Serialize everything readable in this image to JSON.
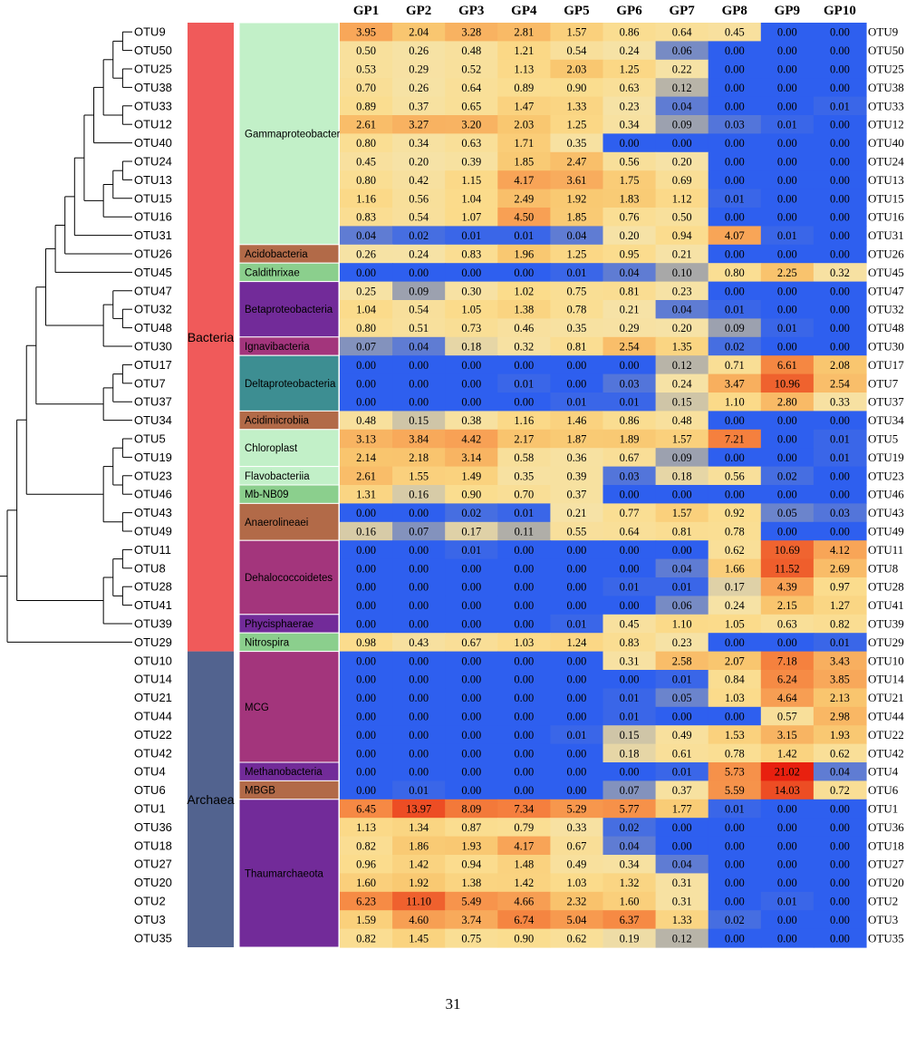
{
  "chart_data": {
    "type": "heatmap",
    "title": "",
    "columns": [
      "GP1",
      "GP2",
      "GP3",
      "GP4",
      "GP5",
      "GP6",
      "GP7",
      "GP8",
      "GP9",
      "GP10"
    ],
    "rows": [
      "OTU9",
      "OTU50",
      "OTU25",
      "OTU38",
      "OTU33",
      "OTU12",
      "OTU40",
      "OTU24",
      "OTU13",
      "OTU15",
      "OTU16",
      "OTU31",
      "OTU26",
      "OTU45",
      "OTU47",
      "OTU32",
      "OTU48",
      "OTU30",
      "OTU17",
      "OTU7",
      "OTU37",
      "OTU34",
      "OTU5",
      "OTU19",
      "OTU23",
      "OTU46",
      "OTU43",
      "OTU49",
      "OTU11",
      "OTU8",
      "OTU28",
      "OTU41",
      "OTU39",
      "OTU29",
      "OTU10",
      "OTU14",
      "OTU21",
      "OTU44",
      "OTU22",
      "OTU42",
      "OTU4",
      "OTU6",
      "OTU1",
      "OTU36",
      "OTU18",
      "OTU27",
      "OTU20",
      "OTU2",
      "OTU3",
      "OTU35"
    ],
    "values": [
      [
        "3.95",
        "2.04",
        "3.28",
        "2.81",
        "1.57",
        "0.86",
        "0.64",
        "0.45",
        "0.00",
        "0.00"
      ],
      [
        "0.50",
        "0.26",
        "0.48",
        "1.21",
        "0.54",
        "0.24",
        "0.06",
        "0.00",
        "0.00",
        "0.00"
      ],
      [
        "0.53",
        "0.29",
        "0.52",
        "1.13",
        "2.03",
        "1.25",
        "0.22",
        "0.00",
        "0.00",
        "0.00"
      ],
      [
        "0.70",
        "0.26",
        "0.64",
        "0.89",
        "0.90",
        "0.63",
        "0.12",
        "0.00",
        "0.00",
        "0.00"
      ],
      [
        "0.89",
        "0.37",
        "0.65",
        "1.47",
        "1.33",
        "0.23",
        "0.04",
        "0.00",
        "0.00",
        "0.01"
      ],
      [
        "2.61",
        "3.27",
        "3.20",
        "2.03",
        "1.25",
        "0.34",
        "0.09",
        "0.03",
        "0.01",
        "0.00"
      ],
      [
        "0.80",
        "0.34",
        "0.63",
        "1.71",
        "0.35",
        "0.00",
        "0.00",
        "0.00",
        "0.00",
        "0.00"
      ],
      [
        "0.45",
        "0.20",
        "0.39",
        "1.85",
        "2.47",
        "0.56",
        "0.20",
        "0.00",
        "0.00",
        "0.00"
      ],
      [
        "0.80",
        "0.42",
        "1.15",
        "4.17",
        "3.61",
        "1.75",
        "0.69",
        "0.00",
        "0.00",
        "0.00"
      ],
      [
        "1.16",
        "0.56",
        "1.04",
        "2.49",
        "1.92",
        "1.83",
        "1.12",
        "0.01",
        "0.00",
        "0.00"
      ],
      [
        "0.83",
        "0.54",
        "1.07",
        "4.50",
        "1.85",
        "0.76",
        "0.50",
        "0.00",
        "0.00",
        "0.00"
      ],
      [
        "0.04",
        "0.02",
        "0.01",
        "0.01",
        "0.04",
        "0.20",
        "0.94",
        "4.07",
        "0.01",
        "0.00"
      ],
      [
        "0.26",
        "0.24",
        "0.83",
        "1.96",
        "1.25",
        "0.95",
        "0.21",
        "0.00",
        "0.00",
        "0.00"
      ],
      [
        "0.00",
        "0.00",
        "0.00",
        "0.00",
        "0.01",
        "0.04",
        "0.10",
        "0.80",
        "2.25",
        "0.32"
      ],
      [
        "0.25",
        "0.09",
        "0.30",
        "1.02",
        "0.75",
        "0.81",
        "0.23",
        "0.00",
        "0.00",
        "0.00"
      ],
      [
        "1.04",
        "0.54",
        "1.05",
        "1.38",
        "0.78",
        "0.21",
        "0.04",
        "0.01",
        "0.00",
        "0.00"
      ],
      [
        "0.80",
        "0.51",
        "0.73",
        "0.46",
        "0.35",
        "0.29",
        "0.20",
        "0.09",
        "0.01",
        "0.00"
      ],
      [
        "0.07",
        "0.04",
        "0.18",
        "0.32",
        "0.81",
        "2.54",
        "1.35",
        "0.02",
        "0.00",
        "0.00"
      ],
      [
        "0.00",
        "0.00",
        "0.00",
        "0.00",
        "0.00",
        "0.00",
        "0.12",
        "0.71",
        "6.61",
        "2.08"
      ],
      [
        "0.00",
        "0.00",
        "0.00",
        "0.01",
        "0.00",
        "0.03",
        "0.24",
        "3.47",
        "10.96",
        "2.54"
      ],
      [
        "0.00",
        "0.00",
        "0.00",
        "0.00",
        "0.01",
        "0.01",
        "0.15",
        "1.10",
        "2.80",
        "0.33"
      ],
      [
        "0.48",
        "0.15",
        "0.38",
        "1.16",
        "1.46",
        "0.86",
        "0.48",
        "0.00",
        "0.00",
        "0.00"
      ],
      [
        "3.13",
        "3.84",
        "4.42",
        "2.17",
        "1.87",
        "1.89",
        "1.57",
        "7.21",
        "0.00",
        "0.01"
      ],
      [
        "2.14",
        "2.18",
        "3.14",
        "0.58",
        "0.36",
        "0.67",
        "0.09",
        "0.00",
        "0.00",
        "0.01"
      ],
      [
        "2.61",
        "1.55",
        "1.49",
        "0.35",
        "0.39",
        "0.03",
        "0.18",
        "0.56",
        "0.02",
        "0.00"
      ],
      [
        "1.31",
        "0.16",
        "0.90",
        "0.70",
        "0.37",
        "0.00",
        "0.00",
        "0.00",
        "0.00",
        "0.00"
      ],
      [
        "0.00",
        "0.00",
        "0.02",
        "0.01",
        "0.21",
        "0.77",
        "1.57",
        "0.92",
        "0.05",
        "0.03"
      ],
      [
        "0.16",
        "0.07",
        "0.17",
        "0.11",
        "0.55",
        "0.64",
        "0.81",
        "0.78",
        "0.00",
        "0.00"
      ],
      [
        "0.00",
        "0.00",
        "0.01",
        "0.00",
        "0.00",
        "0.00",
        "0.00",
        "0.62",
        "10.69",
        "4.12"
      ],
      [
        "0.00",
        "0.00",
        "0.00",
        "0.00",
        "0.00",
        "0.00",
        "0.04",
        "1.66",
        "11.52",
        "2.69"
      ],
      [
        "0.00",
        "0.00",
        "0.00",
        "0.00",
        "0.00",
        "0.01",
        "0.01",
        "0.17",
        "4.39",
        "0.97"
      ],
      [
        "0.00",
        "0.00",
        "0.00",
        "0.00",
        "0.00",
        "0.00",
        "0.06",
        "0.24",
        "2.15",
        "1.27"
      ],
      [
        "0.00",
        "0.00",
        "0.00",
        "0.00",
        "0.01",
        "0.45",
        "1.10",
        "1.05",
        "0.63",
        "0.82"
      ],
      [
        "0.98",
        "0.43",
        "0.67",
        "1.03",
        "1.24",
        "0.83",
        "0.23",
        "0.00",
        "0.00",
        "0.01"
      ],
      [
        "0.00",
        "0.00",
        "0.00",
        "0.00",
        "0.00",
        "0.31",
        "2.58",
        "2.07",
        "7.18",
        "3.43"
      ],
      [
        "0.00",
        "0.00",
        "0.00",
        "0.00",
        "0.00",
        "0.00",
        "0.01",
        "0.84",
        "6.24",
        "3.85"
      ],
      [
        "0.00",
        "0.00",
        "0.00",
        "0.00",
        "0.00",
        "0.01",
        "0.05",
        "1.03",
        "4.64",
        "2.13"
      ],
      [
        "0.00",
        "0.00",
        "0.00",
        "0.00",
        "0.00",
        "0.01",
        "0.00",
        "0.00",
        "0.57",
        "2.98"
      ],
      [
        "0.00",
        "0.00",
        "0.00",
        "0.00",
        "0.01",
        "0.15",
        "0.49",
        "1.53",
        "3.15",
        "1.93"
      ],
      [
        "0.00",
        "0.00",
        "0.00",
        "0.00",
        "0.00",
        "0.18",
        "0.61",
        "0.78",
        "1.42",
        "0.62"
      ],
      [
        "0.00",
        "0.00",
        "0.00",
        "0.00",
        "0.00",
        "0.00",
        "0.01",
        "5.73",
        "21.02",
        "0.04"
      ],
      [
        "0.00",
        "0.01",
        "0.00",
        "0.00",
        "0.00",
        "0.07",
        "0.37",
        "5.59",
        "14.03",
        "0.72"
      ],
      [
        "6.45",
        "13.97",
        "8.09",
        "7.34",
        "5.29",
        "5.77",
        "1.77",
        "0.01",
        "0.00",
        "0.00"
      ],
      [
        "1.13",
        "1.34",
        "0.87",
        "0.79",
        "0.33",
        "0.02",
        "0.00",
        "0.00",
        "0.00",
        "0.00"
      ],
      [
        "0.82",
        "1.86",
        "1.93",
        "4.17",
        "0.67",
        "0.04",
        "0.00",
        "0.00",
        "0.00",
        "0.00"
      ],
      [
        "0.96",
        "1.42",
        "0.94",
        "1.48",
        "0.49",
        "0.34",
        "0.04",
        "0.00",
        "0.00",
        "0.00"
      ],
      [
        "1.60",
        "1.92",
        "1.38",
        "1.42",
        "1.03",
        "1.32",
        "0.31",
        "0.00",
        "0.00",
        "0.00"
      ],
      [
        "6.23",
        "11.10",
        "5.49",
        "4.66",
        "2.32",
        "1.60",
        "0.31",
        "0.00",
        "0.01",
        "0.00"
      ],
      [
        "1.59",
        "4.60",
        "3.74",
        "6.74",
        "5.04",
        "6.37",
        "1.33",
        "0.02",
        "0.00",
        "0.00"
      ],
      [
        "0.82",
        "1.45",
        "0.75",
        "0.90",
        "0.62",
        "0.19",
        "0.12",
        "0.00",
        "0.00",
        "0.00"
      ]
    ],
    "domains": [
      {
        "label": "Bacteria",
        "start": 0,
        "count": 34,
        "color": "#f05a5a"
      },
      {
        "label": "Archaea",
        "start": 34,
        "count": 16,
        "color": "#52638f"
      }
    ],
    "groups": [
      {
        "label": "Gammaproteobacteria",
        "start": 0,
        "count": 12,
        "color": "#c2f0c8"
      },
      {
        "label": "Acidobacteria",
        "start": 12,
        "count": 1,
        "color": "#b26a48"
      },
      {
        "label": "Caldithrixae",
        "start": 13,
        "count": 1,
        "color": "#8bcf8d"
      },
      {
        "label": "Betaproteobacteria",
        "start": 14,
        "count": 3,
        "color": "#722b99"
      },
      {
        "label": "Ignavibacteria",
        "start": 17,
        "count": 1,
        "color": "#a3357c"
      },
      {
        "label": "Deltaproteobacteria",
        "start": 18,
        "count": 3,
        "color": "#3d8e92"
      },
      {
        "label": "Acidimicrobiia",
        "start": 21,
        "count": 1,
        "color": "#b26a48"
      },
      {
        "label": "Chloroplast",
        "start": 22,
        "count": 2,
        "color": "#c2f0c8"
      },
      {
        "label": "Flavobacteriia",
        "start": 24,
        "count": 1,
        "color": "#c2f0c8"
      },
      {
        "label": "Mb-NB09",
        "start": 25,
        "count": 1,
        "color": "#8bcf8d"
      },
      {
        "label": "Anaerolineaei",
        "start": 26,
        "count": 2,
        "color": "#b26a48"
      },
      {
        "label": "Dehalococcoidetes",
        "start": 28,
        "count": 4,
        "color": "#a3357c"
      },
      {
        "label": "Phycisphaerae",
        "start": 32,
        "count": 1,
        "color": "#722b99"
      },
      {
        "label": "Nitrospira",
        "start": 33,
        "count": 1,
        "color": "#8bcf8d"
      },
      {
        "label": "MCG",
        "start": 34,
        "count": 6,
        "color": "#a3357c"
      },
      {
        "label": "Methanobacteria",
        "start": 40,
        "count": 1,
        "color": "#722b99"
      },
      {
        "label": "MBGB",
        "start": 41,
        "count": 1,
        "color": "#b26a48"
      },
      {
        "label": "Thaumarchaeota",
        "start": 42,
        "count": 8,
        "color": "#722b99"
      }
    ],
    "colormap": {
      "stops": [
        {
          "value": 0.0,
          "color": "#2e5fef"
        },
        {
          "value": 0.1,
          "color": "#a8a8a8"
        },
        {
          "value": 0.2,
          "color": "#f6e2a6"
        },
        {
          "value": 1.0,
          "color": "#fbdc8c"
        },
        {
          "value": 2.0,
          "color": "#f9c770"
        },
        {
          "value": 4.0,
          "color": "#f8a658"
        },
        {
          "value": 7.0,
          "color": "#f5823f"
        },
        {
          "value": 12.0,
          "color": "#ee5a2a"
        },
        {
          "value": 21.0,
          "color": "#e8200f"
        }
      ]
    },
    "dendrogram": "(((((((((((((OTU9,OTU50),(OTU25,OTU38)),(OTU33,OTU12)),OTU40),(((OTU24,OTU13),OTU15),OTU16)),OTU31),OTU26),OTU45),((OTU47,(OTU32,OTU48)),OTU30)),(((OTU17,OTU7),OTU37),OTU34)),(((OTU5,OTU19),(OTU23,OTU46)),(OTU43,OTU49))),(((OTU11,OTU8),(OTU28,OTU41)),OTU39)),OTU29),(((((OTU10,OTU14),(OTU21,OTU44)),(OTU22,OTU42)),(OTU4,OTU6)),(((OTU1,OTU36),OTU18),((OTU27,OTU20),(OTU2,(OTU3,OTU35))))))"
  },
  "page_number": "31"
}
